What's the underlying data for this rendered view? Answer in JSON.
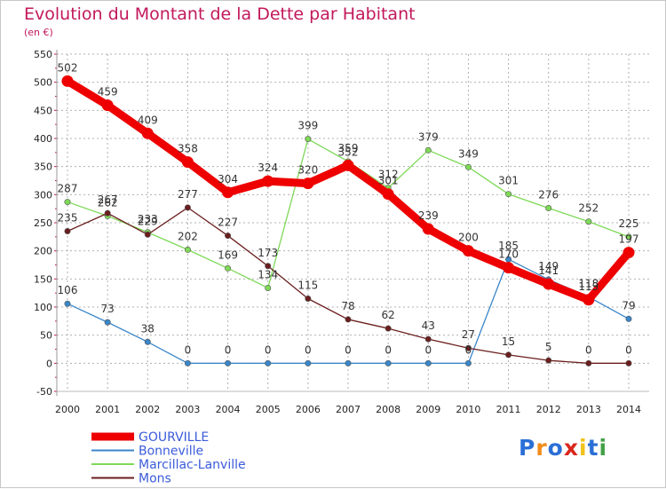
{
  "header": {
    "title": "Evolution du Montant de la Dette par Habitant",
    "unit": "(en €)"
  },
  "logo": {
    "text": "Proxiti",
    "colors": [
      "#2a6fd6",
      "#f28c1a",
      "#2a6fd6",
      "#d9261c",
      "#f2c21a",
      "#2a6fd6",
      "#43a047"
    ]
  },
  "colors": {
    "title": "#c2185b",
    "grid": "#b0b0b0",
    "axis_ticks": "#c2185b"
  },
  "chart_data": {
    "type": "line",
    "title": "Evolution du Montant de la Dette par Habitant",
    "ylabel": "(en €)",
    "xlabel": "",
    "ylim": [
      -50,
      550
    ],
    "yticks": [
      -50,
      0,
      50,
      100,
      150,
      200,
      250,
      300,
      350,
      400,
      450,
      500,
      550
    ],
    "grid": true,
    "legend": "bottom-left",
    "x": [
      "2000",
      "2001",
      "2002",
      "2003",
      "2004",
      "2005",
      "2006",
      "2007",
      "2008",
      "2009",
      "2010",
      "2011",
      "2012",
      "2013",
      "2014"
    ],
    "series": [
      {
        "name": "GOURVILLE",
        "color": "#ee0000",
        "emphasis": true,
        "values": [
          502,
          459,
          409,
          358,
          304,
          324,
          320,
          352,
          301,
          239,
          200,
          170,
          141,
          113,
          197
        ]
      },
      {
        "name": "Bonneville",
        "color": "#3a86c8",
        "emphasis": false,
        "values": [
          106,
          73,
          38,
          0,
          0,
          0,
          0,
          0,
          0,
          0,
          0,
          185,
          149,
          118,
          79
        ]
      },
      {
        "name": "Marcillac-Lanville",
        "color": "#7ed957",
        "emphasis": false,
        "values": [
          287,
          262,
          233,
          202,
          169,
          134,
          399,
          359,
          312,
          379,
          349,
          301,
          276,
          252,
          225
        ]
      },
      {
        "name": "Mons",
        "color": "#6b1e1e",
        "emphasis": false,
        "values": [
          235,
          267,
          229,
          277,
          227,
          173,
          115,
          78,
          62,
          43,
          27,
          15,
          5,
          0,
          0
        ]
      }
    ]
  }
}
